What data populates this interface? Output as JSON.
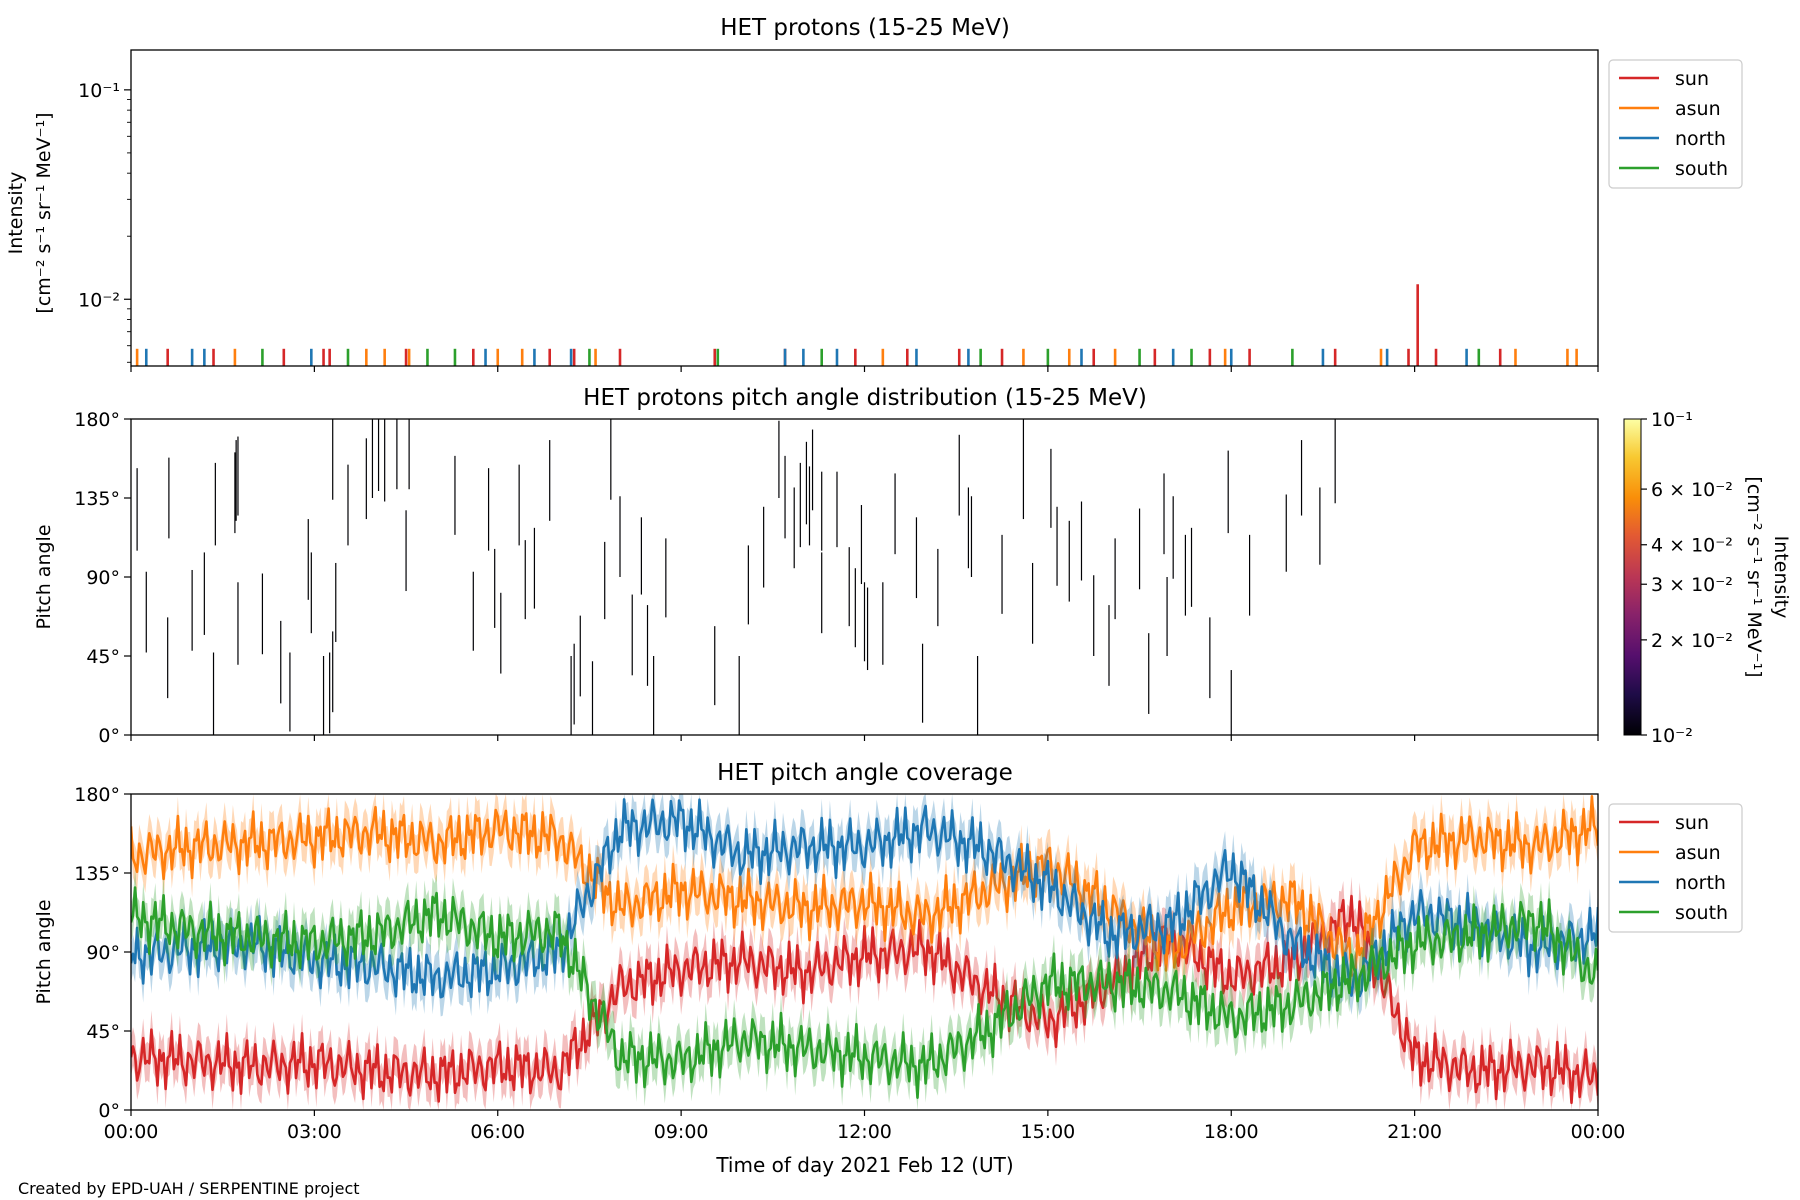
{
  "figure": {
    "footer": "Created by EPD-UAH / SERPENTINE project",
    "xlabel": "Time of day 2021 Feb 12 (UT)",
    "time_ticks": [
      "00:00",
      "03:00",
      "06:00",
      "09:00",
      "12:00",
      "15:00",
      "18:00",
      "21:00",
      "00:00"
    ]
  },
  "colors": {
    "sun": "#d62728",
    "asun": "#ff7f0e",
    "north": "#1f77b4",
    "south": "#2ca02c"
  },
  "chart_data": [
    {
      "type": "line",
      "title": "HET protons (15-25 MeV)",
      "ylabel_line1": "Intensity",
      "ylabel_line2": "[cm⁻² s⁻¹ sr⁻¹ MeV⁻¹]",
      "yscale": "log",
      "ylim": [
        0.0048,
        0.155
      ],
      "xlim_hours": [
        0,
        24
      ],
      "yticks": [
        {
          "label": "10⁻¹",
          "value": 0.1
        },
        {
          "label": "10⁻²",
          "value": 0.01
        }
      ],
      "legend": [
        "sun",
        "asun",
        "north",
        "south"
      ],
      "legend_position": "upper right, outside",
      "series": [
        {
          "name": "sun",
          "color": "#d62728",
          "x": [
            0.6,
            1.35,
            2.5,
            3.15,
            3.25,
            4.5,
            5.6,
            6.85,
            7.25,
            8.0,
            9.55,
            10.7,
            11.85,
            12.7,
            13.55,
            14.25,
            15.75,
            16.75,
            17.65,
            18.3,
            19.7,
            20.9,
            21.05,
            21.35,
            22.4
          ],
          "y": [
            0.0058,
            0.0058,
            0.0058,
            0.0058,
            0.0058,
            0.0058,
            0.0058,
            0.0058,
            0.0058,
            0.0058,
            0.0058,
            0.0058,
            0.0058,
            0.0058,
            0.0058,
            0.0058,
            0.0058,
            0.0058,
            0.0058,
            0.0058,
            0.0058,
            0.0058,
            0.0118,
            0.0058,
            0.0058
          ]
        },
        {
          "name": "asun",
          "color": "#ff7f0e",
          "x": [
            0.1,
            1.7,
            3.85,
            4.15,
            4.55,
            6.0,
            6.4,
            7.6,
            12.3,
            14.6,
            15.35,
            16.1,
            17.9,
            20.45,
            22.65,
            23.5,
            23.65
          ],
          "y": [
            0.0058,
            0.0058,
            0.0058,
            0.0058,
            0.0058,
            0.0058,
            0.0058,
            0.0058,
            0.0058,
            0.0058,
            0.0058,
            0.0058,
            0.0058,
            0.0058,
            0.0058,
            0.0058,
            0.0058
          ]
        },
        {
          "name": "north",
          "color": "#1f77b4",
          "x": [
            0.25,
            1.0,
            1.2,
            2.95,
            5.8,
            6.6,
            7.2,
            10.7,
            11.0,
            11.55,
            12.85,
            13.7,
            15.55,
            17.05,
            18.0,
            19.5,
            20.55,
            21.85
          ],
          "y": [
            0.0058,
            0.0058,
            0.0058,
            0.0058,
            0.0058,
            0.0058,
            0.0058,
            0.0058,
            0.0058,
            0.0058,
            0.0058,
            0.0058,
            0.0058,
            0.0058,
            0.0058,
            0.0058,
            0.0058,
            0.0058
          ]
        },
        {
          "name": "south",
          "color": "#2ca02c",
          "x": [
            2.15,
            3.55,
            4.85,
            5.3,
            7.5,
            9.6,
            11.3,
            13.9,
            15.0,
            16.5,
            17.35,
            19.0,
            22.05
          ],
          "y": [
            0.0058,
            0.0058,
            0.0058,
            0.0058,
            0.0058,
            0.0058,
            0.0058,
            0.0058,
            0.0058,
            0.0058,
            0.0058,
            0.0058,
            0.0058
          ]
        }
      ]
    },
    {
      "type": "heatmap",
      "title": "HET protons pitch angle distribution (15-25 MeV)",
      "ylabel": "Pitch angle",
      "ylim": [
        0,
        180
      ],
      "xlim_hours": [
        0,
        24
      ],
      "yticks": [
        "0°",
        "45°",
        "90°",
        "135°",
        "180°"
      ],
      "colorbar": {
        "label_line1": "Intensity",
        "label_line2": "[cm⁻² s⁻¹ sr⁻¹ MeV⁻¹]",
        "scale": "log",
        "range": [
          0.01,
          0.1
        ],
        "ticks": [
          {
            "label": "10⁻¹",
            "value": 0.1
          },
          {
            "label": "6 × 10⁻²",
            "value": 0.06
          },
          {
            "label": "4 × 10⁻²",
            "value": 0.04
          },
          {
            "label": "3 × 10⁻²",
            "value": 0.03
          },
          {
            "label": "2 × 10⁻²",
            "value": 0.02
          },
          {
            "label": "10⁻²",
            "value": 0.01
          }
        ]
      },
      "segments": [
        {
          "t": 0.1,
          "from": 105,
          "to": 152
        },
        {
          "t": 0.25,
          "from": 47,
          "to": 93
        },
        {
          "t": 0.6,
          "from": 21,
          "to": 67
        },
        {
          "t": 0.62,
          "from": 112,
          "to": 158
        },
        {
          "t": 1.0,
          "from": 48,
          "to": 94
        },
        {
          "t": 1.2,
          "from": 57,
          "to": 104
        },
        {
          "t": 1.35,
          "from": 0,
          "to": 47
        },
        {
          "t": 1.38,
          "from": 108,
          "to": 155
        },
        {
          "t": 1.7,
          "from": 115,
          "to": 161
        },
        {
          "t": 1.72,
          "from": 122,
          "to": 168
        },
        {
          "t": 1.75,
          "from": 125,
          "to": 170
        },
        {
          "t": 1.75,
          "from": 40,
          "to": 87
        },
        {
          "t": 2.15,
          "from": 46,
          "to": 92
        },
        {
          "t": 2.45,
          "from": 18,
          "to": 65
        },
        {
          "t": 2.6,
          "from": 2,
          "to": 47
        },
        {
          "t": 2.9,
          "from": 77,
          "to": 123
        },
        {
          "t": 2.95,
          "from": 58,
          "to": 104
        },
        {
          "t": 3.15,
          "from": 0,
          "to": 45
        },
        {
          "t": 3.25,
          "from": 1,
          "to": 47
        },
        {
          "t": 3.3,
          "from": 13,
          "to": 59
        },
        {
          "t": 3.35,
          "from": 53,
          "to": 98
        },
        {
          "t": 3.3,
          "from": 134,
          "to": 180
        },
        {
          "t": 3.55,
          "from": 108,
          "to": 154
        },
        {
          "t": 3.85,
          "from": 123,
          "to": 169
        },
        {
          "t": 3.95,
          "from": 135,
          "to": 180
        },
        {
          "t": 4.05,
          "from": 139,
          "to": 180
        },
        {
          "t": 4.15,
          "from": 133,
          "to": 180
        },
        {
          "t": 4.35,
          "from": 140,
          "to": 180
        },
        {
          "t": 4.5,
          "from": 82,
          "to": 128
        },
        {
          "t": 4.55,
          "from": 140,
          "to": 180
        },
        {
          "t": 5.3,
          "from": 114,
          "to": 159
        },
        {
          "t": 5.6,
          "from": 48,
          "to": 93
        },
        {
          "t": 5.85,
          "from": 105,
          "to": 152
        },
        {
          "t": 5.95,
          "from": 61,
          "to": 106
        },
        {
          "t": 6.05,
          "from": 35,
          "to": 81
        },
        {
          "t": 6.35,
          "from": 108,
          "to": 154
        },
        {
          "t": 6.45,
          "from": 66,
          "to": 111
        },
        {
          "t": 6.6,
          "from": 72,
          "to": 118
        },
        {
          "t": 6.85,
          "from": 122,
          "to": 168
        },
        {
          "t": 7.2,
          "from": 0,
          "to": 45
        },
        {
          "t": 7.25,
          "from": 6,
          "to": 52
        },
        {
          "t": 7.35,
          "from": 22,
          "to": 68
        },
        {
          "t": 7.55,
          "from": 0,
          "to": 42
        },
        {
          "t": 7.75,
          "from": 66,
          "to": 110
        },
        {
          "t": 7.85,
          "from": 134,
          "to": 180
        },
        {
          "t": 8.0,
          "from": 90,
          "to": 136
        },
        {
          "t": 8.2,
          "from": 34,
          "to": 80
        },
        {
          "t": 8.35,
          "from": 80,
          "to": 124
        },
        {
          "t": 8.45,
          "from": 28,
          "to": 74
        },
        {
          "t": 8.55,
          "from": 0,
          "to": 45
        },
        {
          "t": 8.75,
          "from": 67,
          "to": 112
        },
        {
          "t": 9.55,
          "from": 17,
          "to": 62
        },
        {
          "t": 9.95,
          "from": 0,
          "to": 45
        },
        {
          "t": 10.1,
          "from": 63,
          "to": 108
        },
        {
          "t": 10.35,
          "from": 84,
          "to": 130
        },
        {
          "t": 10.6,
          "from": 135,
          "to": 179
        },
        {
          "t": 10.7,
          "from": 112,
          "to": 159
        },
        {
          "t": 10.85,
          "from": 95,
          "to": 141
        },
        {
          "t": 10.95,
          "from": 107,
          "to": 155
        },
        {
          "t": 11.05,
          "from": 120,
          "to": 167
        },
        {
          "t": 11.1,
          "from": 108,
          "to": 153
        },
        {
          "t": 11.15,
          "from": 128,
          "to": 174
        },
        {
          "t": 11.3,
          "from": 105,
          "to": 150
        },
        {
          "t": 11.3,
          "from": 58,
          "to": 104
        },
        {
          "t": 11.55,
          "from": 107,
          "to": 150
        },
        {
          "t": 11.75,
          "from": 62,
          "to": 107
        },
        {
          "t": 11.85,
          "from": 50,
          "to": 95
        },
        {
          "t": 11.95,
          "from": 86,
          "to": 131
        },
        {
          "t": 12.0,
          "from": 42,
          "to": 87
        },
        {
          "t": 12.05,
          "from": 37,
          "to": 84
        },
        {
          "t": 12.3,
          "from": 40,
          "to": 87
        },
        {
          "t": 12.5,
          "from": 103,
          "to": 149
        },
        {
          "t": 12.85,
          "from": 78,
          "to": 124
        },
        {
          "t": 12.95,
          "from": 7,
          "to": 52
        },
        {
          "t": 13.2,
          "from": 62,
          "to": 106
        },
        {
          "t": 13.55,
          "from": 125,
          "to": 171
        },
        {
          "t": 13.7,
          "from": 95,
          "to": 141
        },
        {
          "t": 13.75,
          "from": 90,
          "to": 136
        },
        {
          "t": 13.85,
          "from": 0,
          "to": 45
        },
        {
          "t": 14.25,
          "from": 69,
          "to": 114
        },
        {
          "t": 14.6,
          "from": 123,
          "to": 180
        },
        {
          "t": 14.75,
          "from": 52,
          "to": 98
        },
        {
          "t": 15.05,
          "from": 118,
          "to": 163
        },
        {
          "t": 15.15,
          "from": 85,
          "to": 130
        },
        {
          "t": 15.35,
          "from": 76,
          "to": 122
        },
        {
          "t": 15.55,
          "from": 88,
          "to": 133
        },
        {
          "t": 15.75,
          "from": 45,
          "to": 91
        },
        {
          "t": 16.0,
          "from": 28,
          "to": 74
        },
        {
          "t": 16.1,
          "from": 66,
          "to": 112
        },
        {
          "t": 16.5,
          "from": 83,
          "to": 129
        },
        {
          "t": 16.65,
          "from": 12,
          "to": 58
        },
        {
          "t": 16.9,
          "from": 103,
          "to": 149
        },
        {
          "t": 16.95,
          "from": 45,
          "to": 90
        },
        {
          "t": 17.05,
          "from": 89,
          "to": 136
        },
        {
          "t": 17.25,
          "from": 68,
          "to": 114
        },
        {
          "t": 17.35,
          "from": 73,
          "to": 118
        },
        {
          "t": 17.65,
          "from": 21,
          "to": 67
        },
        {
          "t": 17.95,
          "from": 115,
          "to": 162
        },
        {
          "t": 18.0,
          "from": 0,
          "to": 37
        },
        {
          "t": 18.3,
          "from": 68,
          "to": 114
        },
        {
          "t": 18.9,
          "from": 93,
          "to": 137
        },
        {
          "t": 19.15,
          "from": 125,
          "to": 168
        },
        {
          "t": 19.45,
          "from": 97,
          "to": 141
        },
        {
          "t": 19.7,
          "from": 132,
          "to": 180
        }
      ]
    },
    {
      "type": "line",
      "title": "HET pitch angle coverage",
      "ylabel": "Pitch angle",
      "ylim": [
        0,
        180
      ],
      "xlim_hours": [
        0,
        24
      ],
      "yticks": [
        "0°",
        "45°",
        "90°",
        "135°",
        "180°"
      ],
      "legend": [
        "sun",
        "asun",
        "north",
        "south"
      ],
      "legend_position": "upper right, outside",
      "band_halfwidth_deg": 11,
      "x_hours": [
        0,
        1,
        2,
        3,
        4,
        5,
        6,
        7,
        8,
        9,
        10,
        11,
        12,
        13,
        14,
        15,
        16,
        17,
        18,
        19,
        20,
        21,
        22,
        23,
        24
      ],
      "series": [
        {
          "name": "sun",
          "color": "#d62728",
          "values": [
            30,
            28,
            25,
            27,
            22,
            20,
            25,
            22,
            70,
            80,
            85,
            78,
            88,
            92,
            68,
            50,
            72,
            98,
            75,
            85,
            112,
            30,
            22,
            25,
            18
          ]
        },
        {
          "name": "asun",
          "color": "#ff7f0e",
          "values": [
            145,
            150,
            152,
            155,
            158,
            152,
            160,
            155,
            115,
            125,
            120,
            115,
            118,
            110,
            125,
            140,
            115,
            90,
            115,
            120,
            85,
            150,
            155,
            150,
            162
          ]
        },
        {
          "name": "north",
          "color": "#1f77b4",
          "values": [
            88,
            92,
            95,
            85,
            82,
            75,
            80,
            90,
            160,
            165,
            145,
            150,
            150,
            160,
            148,
            128,
            100,
            105,
            138,
            95,
            72,
            112,
            105,
            92,
            100
          ]
        },
        {
          "name": "south",
          "color": "#2ca02c",
          "values": [
            110,
            102,
            98,
            95,
            100,
            112,
            98,
            102,
            30,
            28,
            40,
            35,
            30,
            25,
            45,
            72,
            72,
            68,
            52,
            60,
            75,
            95,
            100,
            108,
            75
          ]
        }
      ]
    }
  ]
}
